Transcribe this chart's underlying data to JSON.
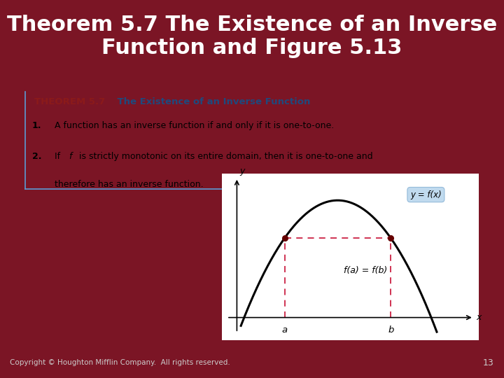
{
  "title_line1": "Theorem 5.7 The Existence of an Inverse",
  "title_line2": "Function and Figure 5.13",
  "title_fontsize": 22,
  "title_color": "#FFFFFF",
  "bg_color": "#7B1525",
  "white_box_color": "#FFFFFF",
  "theorem_header_bg": "#BDD4E8",
  "theorem_header_label": "THEOREM 5.7",
  "theorem_header_title": "    The Existence of an Inverse Function",
  "theorem_item1": "A function has an inverse function if and only if it is one-to-one.",
  "theorem_item2_pre": "If ",
  "theorem_item2_f": "f",
  "theorem_item2_post": " is strictly monotonic on its entire domain, then it is one-to-one and",
  "theorem_item2c": "therefore has an inverse function.",
  "copyright": "Copyright © Houghton Mifflin Company.  All rights reserved.",
  "page_number": "13",
  "curve_color": "#000000",
  "dashed_color": "#CC2244",
  "dot_color": "#660000",
  "label_fa_fb": "f(a) = f(b)",
  "label_y_eq_fx": "y = f(x)",
  "label_a": "a",
  "label_b": "b",
  "label_x": "x",
  "label_y": "y",
  "border_color": "#5B9BD5"
}
